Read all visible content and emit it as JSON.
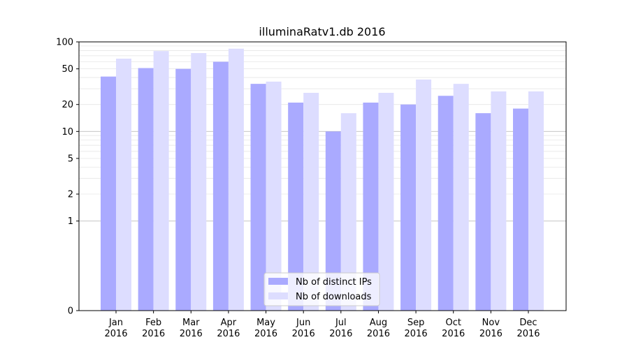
{
  "chart_data": {
    "type": "bar",
    "title": "illuminaRatv1.db 2016",
    "xlabel": "",
    "ylabel": "",
    "y_scale": "symlog",
    "ylim": [
      0,
      100
    ],
    "yticks": [
      0,
      1,
      2,
      5,
      10,
      20,
      50,
      100
    ],
    "ytick_labels": [
      "0",
      "1",
      "2",
      "5",
      "10",
      "20",
      "50",
      "100"
    ],
    "categories": [
      "Jan\n2016",
      "Feb\n2016",
      "Mar\n2016",
      "Apr\n2016",
      "May\n2016",
      "Jun\n2016",
      "Jul\n2016",
      "Aug\n2016",
      "Sep\n2016",
      "Oct\n2016",
      "Nov\n2016",
      "Dec\n2016"
    ],
    "series": [
      {
        "name": "Nb of distinct IPs",
        "color": "#aaaaff",
        "values": [
          41,
          51,
          50,
          60,
          34,
          21,
          10,
          21,
          20,
          25,
          16,
          18
        ]
      },
      {
        "name": "Nb of downloads",
        "color": "#ddddff",
        "values": [
          65,
          79,
          75,
          84,
          36,
          27,
          16,
          27,
          38,
          34,
          28,
          28
        ]
      }
    ],
    "legend_position": "lower center",
    "grid": true
  }
}
